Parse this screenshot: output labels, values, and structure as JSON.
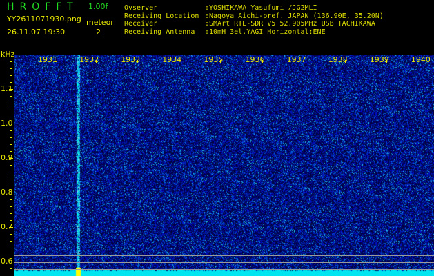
{
  "header": {
    "app_title": "HROFFT",
    "version": "1.00f",
    "filename": "YY2611071930.png",
    "datetime": "26.11.07 19:30",
    "meteor_label": "meteor",
    "meteor_count": "2"
  },
  "info": [
    {
      "key": "Ovserver",
      "value": ":YOSHIKAWA Yasufumi /JG2MLI"
    },
    {
      "key": "Receiving Location",
      "value": ":Nagoya Aichi-pref. JAPAN (136.90E, 35.20N)"
    },
    {
      "key": "Receiver",
      "value": ":SMArt RTL-SDR V5 52.905MHz USB TACHIKAWA"
    },
    {
      "key": "Receiving Antenna",
      "value": ":10mH 3el.YAGI Horizontal:ENE"
    }
  ],
  "spectrogram": {
    "y_unit": "kHz",
    "y_labels": [
      "1.1",
      "1.0",
      "0.9",
      "0.8",
      "0.7",
      "0.6"
    ],
    "x_labels": [
      "1931",
      "1932",
      "1933",
      "1934",
      "1935",
      "1936",
      "1937",
      "1938",
      "1939",
      "1940"
    ],
    "meteor_time_minute": "1932",
    "colors": {
      "background": "#000060",
      "noise": "#2040ff",
      "signal": "#00ffff",
      "peak": "#ffff00",
      "text": "#e8e800"
    }
  }
}
